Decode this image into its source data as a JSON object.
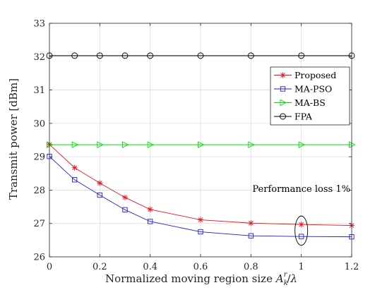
{
  "chart_data": {
    "type": "line",
    "xlabel": "Normalized moving region size A_k^r/λ",
    "ylabel": "Transmit power [dBm]",
    "xlim": [
      0,
      1.2
    ],
    "ylim": [
      26,
      33
    ],
    "xticks": [
      "0",
      "0.2",
      "0.4",
      "0.6",
      "0.8",
      "1",
      "1.2"
    ],
    "yticks": [
      "26",
      "27",
      "28",
      "29",
      "30",
      "31",
      "32",
      "33"
    ],
    "grid": true,
    "legend_position": "top-right",
    "x": [
      0,
      0.1,
      0.2,
      0.3,
      0.4,
      0.6,
      0.8,
      1.0,
      1.2
    ],
    "series": [
      {
        "name": "Proposed",
        "color": "#e8141e",
        "marker": "asterisk",
        "values": [
          29.37,
          28.67,
          28.21,
          27.78,
          27.42,
          27.11,
          27.01,
          26.97,
          26.94
        ]
      },
      {
        "name": "MA-PSO",
        "color": "#1f1fd6",
        "marker": "square",
        "values": [
          29.01,
          28.31,
          27.85,
          27.41,
          27.06,
          26.75,
          26.63,
          26.61,
          26.6
        ]
      },
      {
        "name": "MA-BS",
        "color": "#00e000",
        "marker": "triangle-right",
        "values": [
          29.36,
          29.36,
          29.36,
          29.36,
          29.36,
          29.36,
          29.36,
          29.36,
          29.36
        ]
      },
      {
        "name": "FPA",
        "color": "#000000",
        "marker": "circle",
        "values": [
          32.03,
          32.03,
          32.03,
          32.03,
          32.03,
          32.03,
          32.03,
          32.03,
          32.03
        ]
      }
    ],
    "annotation": {
      "text": "Performance loss 1%",
      "x": 1.0,
      "y_range": [
        26.6,
        26.97
      ]
    }
  }
}
